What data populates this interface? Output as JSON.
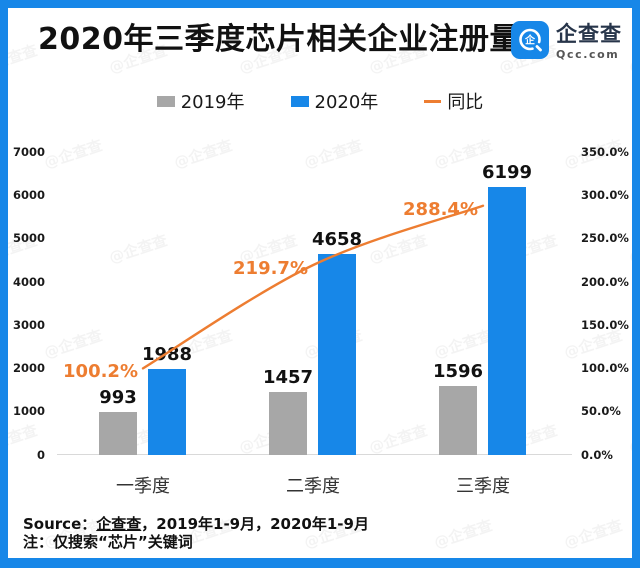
{
  "header": {
    "title": "2020年三季度芯片相关企业注册量",
    "logo": {
      "brand": "企查查",
      "domain": "Qcc.com"
    }
  },
  "legend": {
    "items": [
      {
        "label": "2019年",
        "color": "#a7a7a7",
        "swatch": "square"
      },
      {
        "label": "2020年",
        "color": "#1787e8",
        "swatch": "square"
      },
      {
        "label": "同比",
        "color": "#ed7d31",
        "swatch": "line"
      }
    ]
  },
  "chart_data": {
    "type": "bar",
    "subtype": "grouped-bars-with-line-overlay-dual-axis",
    "title": "2020年三季度芯片相关企业注册量",
    "categories": [
      "一季度",
      "二季度",
      "三季度"
    ],
    "series": [
      {
        "name": "2019年",
        "type": "bar",
        "axis": "left",
        "color": "#a7a7a7",
        "values": [
          993,
          1457,
          1596
        ]
      },
      {
        "name": "2020年",
        "type": "bar",
        "axis": "left",
        "color": "#1787e8",
        "values": [
          1988,
          4658,
          6199
        ]
      },
      {
        "name": "同比",
        "type": "line",
        "axis": "right",
        "color": "#ed7d31",
        "values": [
          100.2,
          219.7,
          288.4
        ],
        "labels": [
          "100.2%",
          "219.7%",
          "288.4%"
        ]
      }
    ],
    "left_axis": {
      "min": 0,
      "max": 7000,
      "ticks": [
        "0",
        "1000",
        "2000",
        "3000",
        "4000",
        "5000",
        "6000",
        "7000"
      ]
    },
    "right_axis": {
      "min": 0,
      "max": 350,
      "ticks": [
        "0.0%",
        "50.0%",
        "100.0%",
        "150.0%",
        "200.0%",
        "250.0%",
        "300.0%",
        "350.0%"
      ]
    },
    "grid": false,
    "legend_position": "top"
  },
  "footer": {
    "source_prefix": "Source：",
    "source_brand": "企查查",
    "source_rest": "，2019年1-9月，2020年1-9月",
    "note": "注：仅搜索“芯片”关键词"
  },
  "watermark": "企查查",
  "colors": {
    "frame": "#1787e8",
    "bar_2019": "#a7a7a7",
    "bar_2020": "#1787e8",
    "line": "#ed7d31"
  }
}
